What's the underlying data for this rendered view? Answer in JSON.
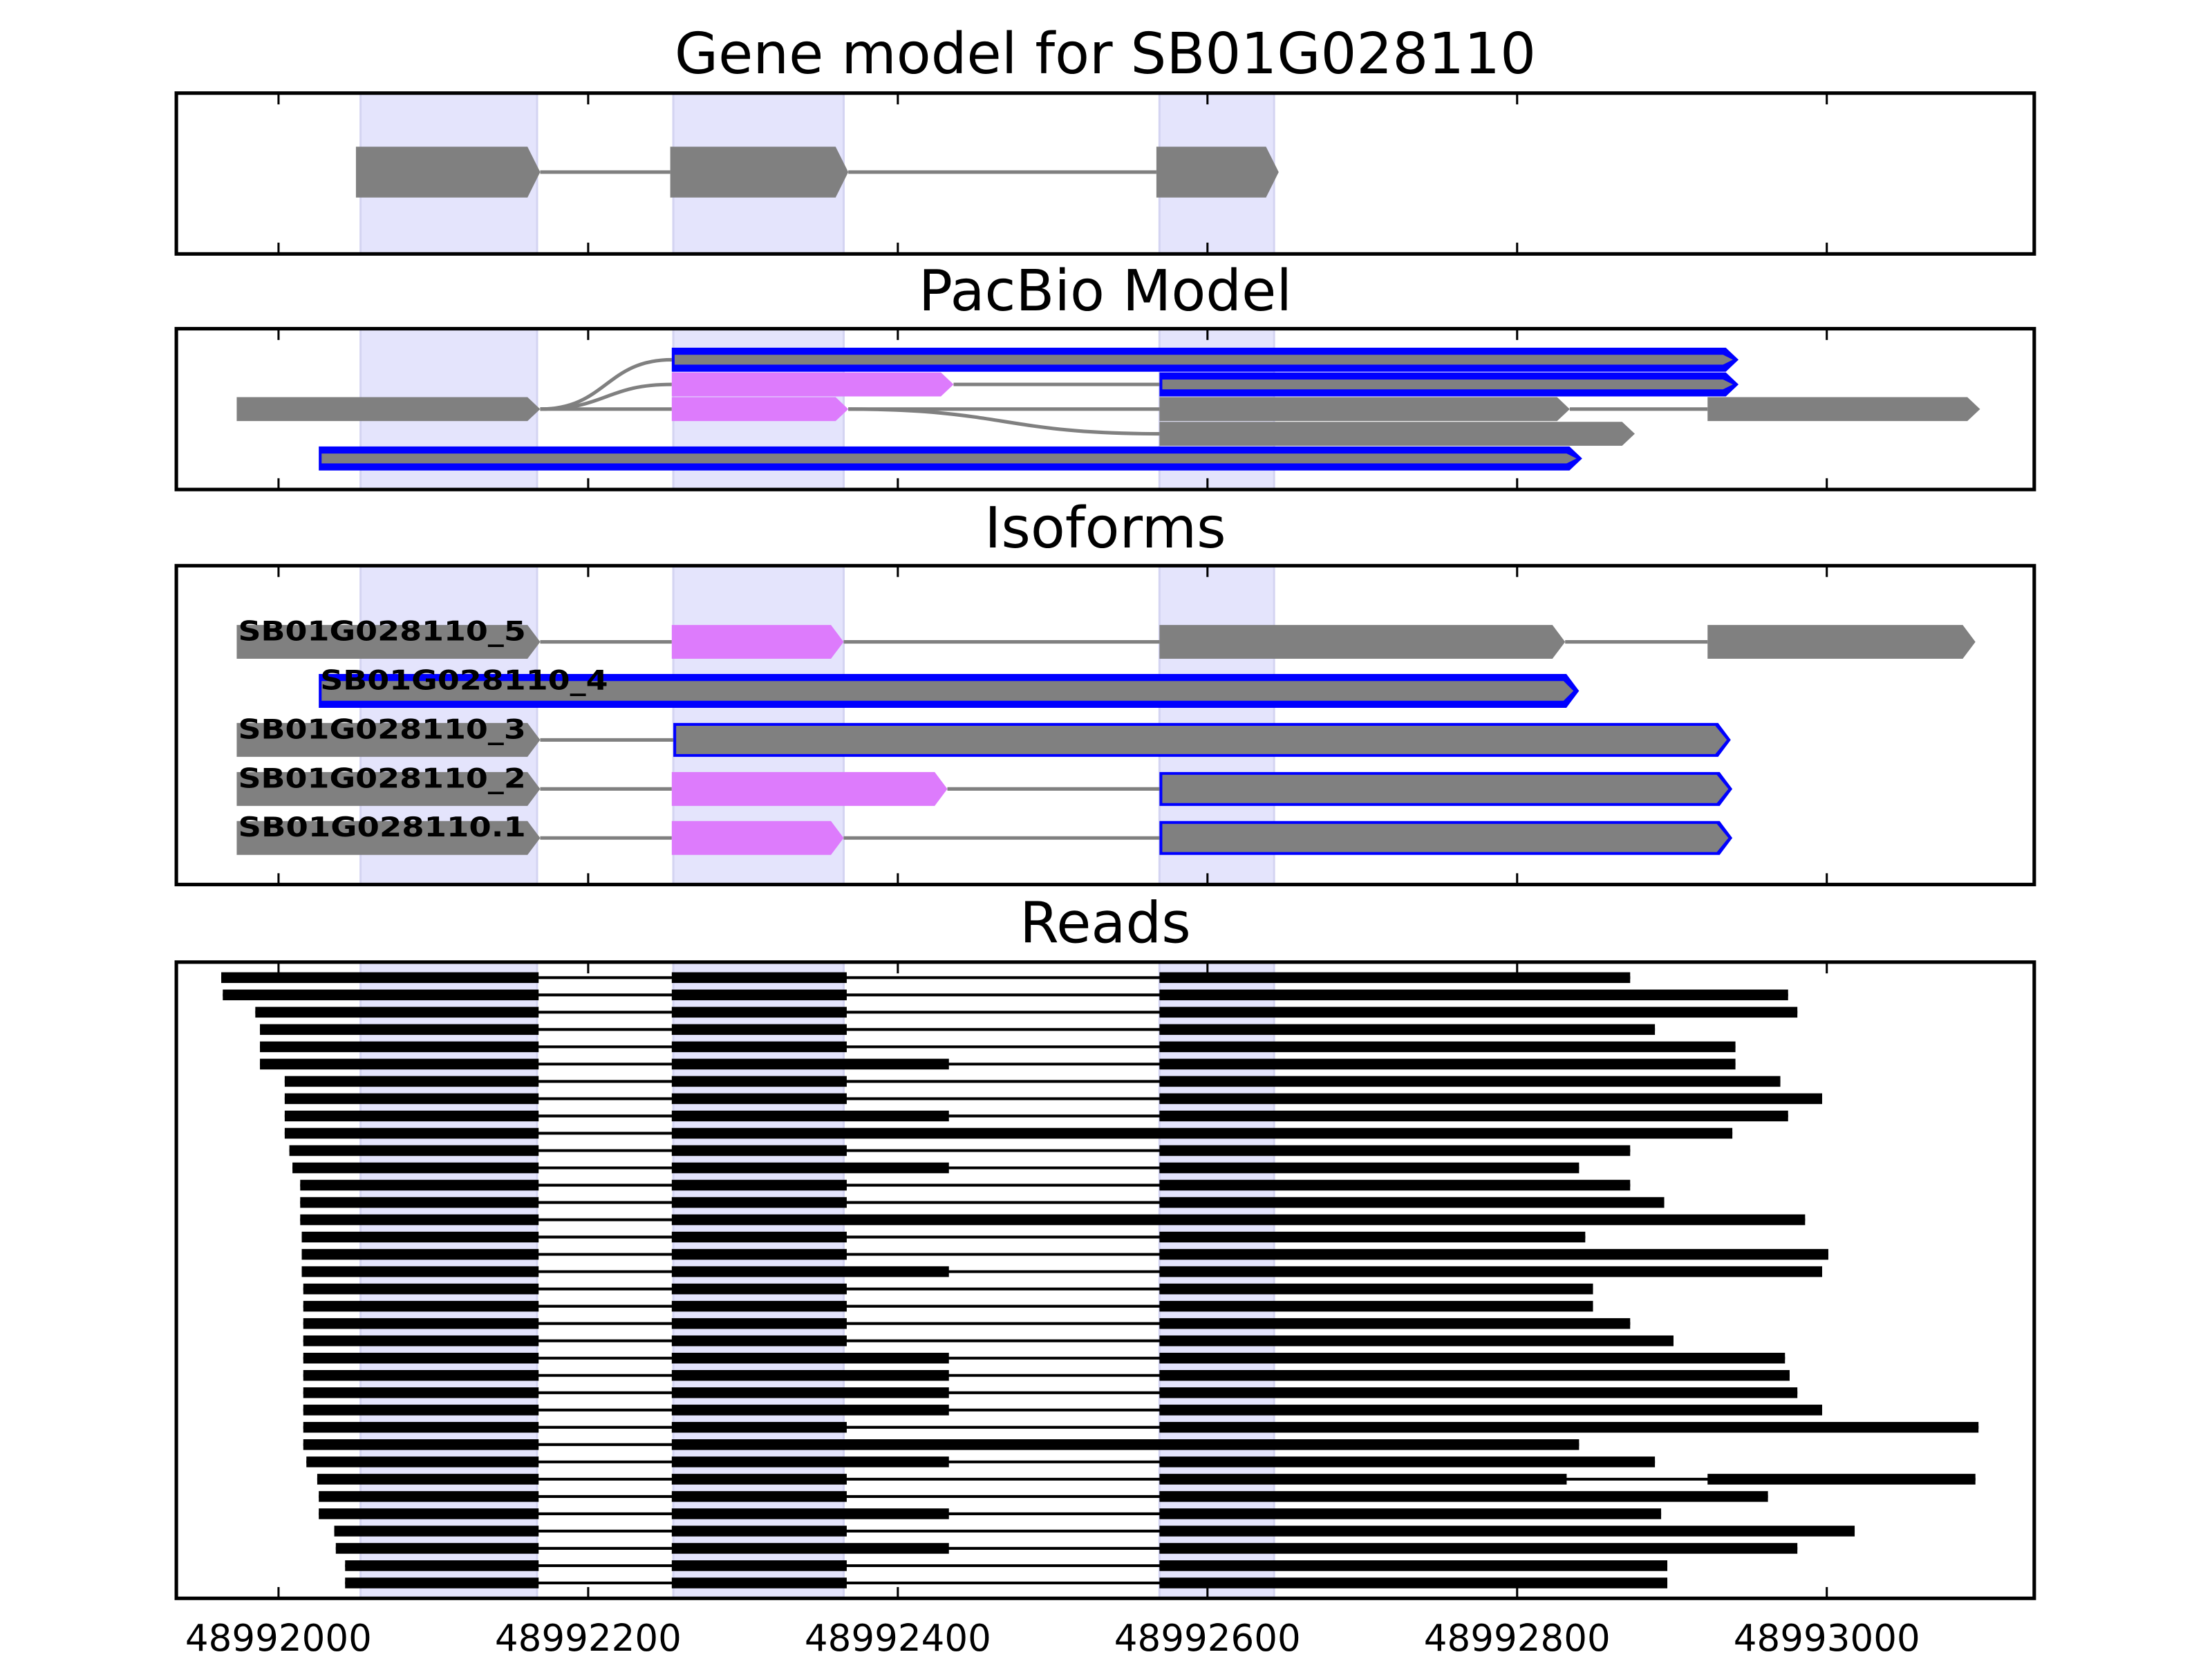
{
  "chart_data": {
    "type": "gene-track",
    "xlim": [
      48991934,
      48993134
    ],
    "xticks": [
      48992000,
      48992200,
      48992400,
      48992600,
      48992800,
      48993000
    ],
    "xtick_labels": [
      "48992000",
      "48992200",
      "48992400",
      "48992600",
      "48992800",
      "48993000"
    ],
    "grid": false,
    "highlight_regions": [
      [
        48992053,
        48992167
      ],
      [
        48992255,
        48992365
      ],
      [
        48992569,
        48992643
      ]
    ],
    "colors": {
      "exon": "#808080",
      "alt_exon": "#dd7bfc",
      "outline": "#0000ff",
      "highlight": "#e4e4fc",
      "read": "#000000",
      "intron": "#808080"
    },
    "gene_model": {
      "title": "Gene model for SB01G028110",
      "exons": [
        [
          48992050,
          48992169
        ],
        [
          48992253,
          48992368
        ],
        [
          48992567,
          48992646
        ]
      ]
    },
    "pacbio": {
      "title": "PacBio Model",
      "blocks": [
        {
          "row": 0,
          "start": 48992254,
          "end": 48992943,
          "style": "blue"
        },
        {
          "row": 1,
          "start": 48992254,
          "end": 48992436,
          "style": "pink"
        },
        {
          "row": 1,
          "start": 48992569,
          "end": 48992943,
          "style": "blue"
        },
        {
          "row": 2,
          "start": 48991973,
          "end": 48992169,
          "style": "gray"
        },
        {
          "row": 2,
          "start": 48992254,
          "end": 48992368,
          "style": "pink"
        },
        {
          "row": 2,
          "start": 48992569,
          "end": 48992834,
          "style": "gray"
        },
        {
          "row": 2,
          "start": 48992923,
          "end": 48993099,
          "style": "gray"
        },
        {
          "row": 3,
          "start": 48992569,
          "end": 48992876,
          "style": "gray"
        },
        {
          "row": 4,
          "start": 48992026,
          "end": 48992842,
          "style": "blue"
        }
      ],
      "links": [
        {
          "from": [
            48992169,
            2
          ],
          "to": [
            48992254,
            0
          ]
        },
        {
          "from": [
            48992169,
            2
          ],
          "to": [
            48992254,
            1
          ]
        },
        {
          "from": [
            48992169,
            2
          ],
          "to": [
            48992254,
            2
          ]
        },
        {
          "from": [
            48992436,
            1
          ],
          "to": [
            48992569,
            1
          ]
        },
        {
          "from": [
            48992368,
            2
          ],
          "to": [
            48992569,
            2
          ]
        },
        {
          "from": [
            48992368,
            2
          ],
          "to": [
            48992569,
            3
          ]
        },
        {
          "from": [
            48992834,
            2
          ],
          "to": [
            48992923,
            2
          ]
        }
      ]
    },
    "isoforms": {
      "title": "Isoforms",
      "transcripts": [
        {
          "label": "SB01G028110_5",
          "exons": [
            [
              48991973,
              48992169,
              "gray"
            ],
            [
              48992254,
              48992365,
              "pink"
            ],
            [
              48992569,
              48992831,
              "gray"
            ],
            [
              48992923,
              48993096,
              "gray"
            ]
          ]
        },
        {
          "label": "SB01G028110_4",
          "exons": [
            [
              48992026,
              48992840,
              "blue-thick"
            ]
          ]
        },
        {
          "label": "SB01G028110_3",
          "exons": [
            [
              48991973,
              48992169,
              "gray"
            ],
            [
              48992255,
              48992938,
              "blue"
            ]
          ]
        },
        {
          "label": "SB01G028110_2",
          "exons": [
            [
              48991973,
              48992169,
              "gray"
            ],
            [
              48992254,
              48992432,
              "pink"
            ],
            [
              48992569,
              48992939,
              "blue"
            ]
          ]
        },
        {
          "label": "SB01G028110.1",
          "exons": [
            [
              48991973,
              48992169,
              "gray"
            ],
            [
              48992254,
              48992365,
              "pink"
            ],
            [
              48992569,
              48992939,
              "blue"
            ]
          ]
        }
      ]
    },
    "reads": {
      "title": "Reads",
      "rows": [
        [
          [
            48991963,
            48992168
          ],
          [
            48992254,
            48992367
          ],
          [
            48992569,
            48992873
          ]
        ],
        [
          [
            48991964,
            48992168
          ],
          [
            48992254,
            48992367
          ],
          [
            48992569,
            48992975
          ]
        ],
        [
          [
            48991985,
            48992168
          ],
          [
            48992254,
            48992367
          ],
          [
            48992569,
            48992981
          ]
        ],
        [
          [
            48991988,
            48992168
          ],
          [
            48992254,
            48992367
          ],
          [
            48992569,
            48992889
          ]
        ],
        [
          [
            48991988,
            48992168
          ],
          [
            48992254,
            48992367
          ],
          [
            48992569,
            48992941
          ]
        ],
        [
          [
            48991988,
            48992168
          ],
          [
            48992254,
            48992433
          ],
          [
            48992569,
            48992941
          ]
        ],
        [
          [
            48992004,
            48992168
          ],
          [
            48992254,
            48992367
          ],
          [
            48992569,
            48992970
          ]
        ],
        [
          [
            48992004,
            48992168
          ],
          [
            48992254,
            48992367
          ],
          [
            48992569,
            48992997
          ]
        ],
        [
          [
            48992004,
            48992168
          ],
          [
            48992254,
            48992433
          ],
          [
            48992569,
            48992975
          ]
        ],
        [
          [
            48992004,
            48992168
          ],
          [
            48992254,
            48992939
          ]
        ],
        [
          [
            48992007,
            48992168
          ],
          [
            48992254,
            48992367
          ],
          [
            48992569,
            48992873
          ]
        ],
        [
          [
            48992009,
            48992168
          ],
          [
            48992254,
            48992433
          ],
          [
            48992569,
            48992840
          ]
        ],
        [
          [
            48992014,
            48992168
          ],
          [
            48992254,
            48992367
          ],
          [
            48992569,
            48992873
          ]
        ],
        [
          [
            48992014,
            48992168
          ],
          [
            48992254,
            48992367
          ],
          [
            48992569,
            48992895
          ]
        ],
        [
          [
            48992014,
            48992168
          ],
          [
            48992254,
            48992986
          ]
        ],
        [
          [
            48992015,
            48992168
          ],
          [
            48992254,
            48992367
          ],
          [
            48992569,
            48992844
          ]
        ],
        [
          [
            48992015,
            48992168
          ],
          [
            48992254,
            48992367
          ],
          [
            48992569,
            48993001
          ]
        ],
        [
          [
            48992015,
            48992168
          ],
          [
            48992254,
            48992433
          ],
          [
            48992569,
            48992997
          ]
        ],
        [
          [
            48992016,
            48992168
          ],
          [
            48992254,
            48992367
          ],
          [
            48992569,
            48992849
          ]
        ],
        [
          [
            48992016,
            48992168
          ],
          [
            48992254,
            48992367
          ],
          [
            48992569,
            48992849
          ]
        ],
        [
          [
            48992016,
            48992168
          ],
          [
            48992254,
            48992367
          ],
          [
            48992569,
            48992873
          ]
        ],
        [
          [
            48992016,
            48992168
          ],
          [
            48992254,
            48992367
          ],
          [
            48992569,
            48992901
          ]
        ],
        [
          [
            48992016,
            48992168
          ],
          [
            48992254,
            48992433
          ],
          [
            48992569,
            48992973
          ]
        ],
        [
          [
            48992016,
            48992168
          ],
          [
            48992254,
            48992433
          ],
          [
            48992569,
            48992976
          ]
        ],
        [
          [
            48992016,
            48992168
          ],
          [
            48992254,
            48992433
          ],
          [
            48992569,
            48992981
          ]
        ],
        [
          [
            48992016,
            48992168
          ],
          [
            48992254,
            48992433
          ],
          [
            48992569,
            48992997
          ]
        ],
        [
          [
            48992016,
            48992168
          ],
          [
            48992254,
            48992367
          ],
          [
            48992569,
            48993098
          ]
        ],
        [
          [
            48992016,
            48992168
          ],
          [
            48992254,
            48992840
          ]
        ],
        [
          [
            48992018,
            48992168
          ],
          [
            48992254,
            48992433
          ],
          [
            48992569,
            48992889
          ]
        ],
        [
          [
            48992025,
            48992168
          ],
          [
            48992254,
            48992367
          ],
          [
            48992569,
            48992832
          ],
          [
            48992923,
            48993096
          ]
        ],
        [
          [
            48992026,
            48992168
          ],
          [
            48992254,
            48992367
          ],
          [
            48992569,
            48992962
          ]
        ],
        [
          [
            48992026,
            48992168
          ],
          [
            48992254,
            48992433
          ],
          [
            48992569,
            48992893
          ]
        ],
        [
          [
            48992036,
            48992168
          ],
          [
            48992254,
            48992367
          ],
          [
            48992569,
            48993018
          ]
        ],
        [
          [
            48992037,
            48992168
          ],
          [
            48992254,
            48992433
          ],
          [
            48992569,
            48992981
          ]
        ],
        [
          [
            48992043,
            48992168
          ],
          [
            48992254,
            48992367
          ],
          [
            48992569,
            48992897
          ]
        ],
        [
          [
            48992043,
            48992168
          ],
          [
            48992254,
            48992367
          ],
          [
            48992569,
            48992897
          ]
        ]
      ]
    }
  }
}
